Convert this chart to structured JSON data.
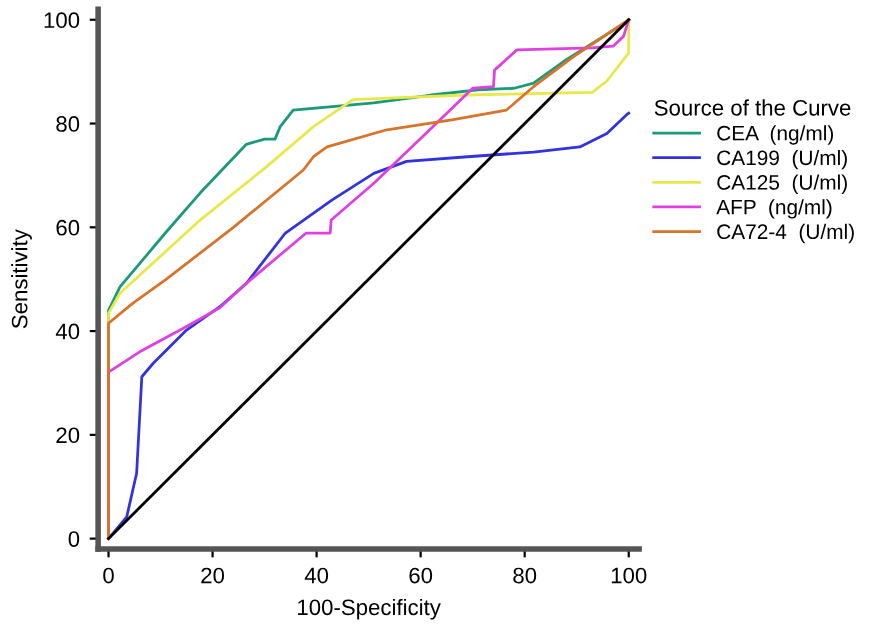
{
  "chart_data": {
    "type": "line",
    "xlabel": "100-Specificity",
    "ylabel": "Sensitivity",
    "legend_title": "Source of the Curve",
    "legend": "right",
    "grid": false,
    "marker": "none",
    "line_style": "solid",
    "xlim": [
      -2,
      102
    ],
    "ylim": [
      -2,
      102
    ],
    "xticks": [
      0,
      20,
      40,
      60,
      80,
      100
    ],
    "yticks": [
      0,
      20,
      40,
      60,
      80,
      100
    ],
    "series": [
      {
        "name": "CEA  (ng/ml)",
        "color": "#1a9a7a",
        "x": [
          0,
          0,
          2.2,
          11,
          17.6,
          26.5,
          30,
          32,
          33,
          35.5,
          51,
          62,
          71,
          78,
          81.7,
          88,
          99.6,
          100
        ],
        "values": [
          0,
          44,
          48.5,
          59,
          66.6,
          76,
          77,
          77,
          79.4,
          82.6,
          84,
          85.5,
          86.5,
          86.8,
          87.8,
          92.3,
          99.6,
          100
        ]
      },
      {
        "name": "CA199  (U/ml)",
        "color": "#3333dd",
        "x": [
          0,
          3.5,
          5.4,
          6.4,
          8.6,
          15,
          21.4,
          26.5,
          34,
          43,
          51,
          57.3,
          69,
          81.7,
          90.6,
          95.8,
          99.6,
          100
        ],
        "values": [
          0,
          4.2,
          12.6,
          31.2,
          33.8,
          40.2,
          44.7,
          49.2,
          58.9,
          65.3,
          70.4,
          72.7,
          73.6,
          74.5,
          75.5,
          78.1,
          81.7,
          82
        ]
      },
      {
        "name": "CA125  (U/ml)",
        "color": "#e8e84a",
        "x": [
          0,
          0,
          2.2,
          17.6,
          30.4,
          39.4,
          47,
          56,
          69,
          93,
          95.8,
          100,
          100
        ],
        "values": [
          0,
          43.4,
          47.3,
          61.4,
          71.7,
          79.4,
          84.6,
          85,
          85.5,
          86,
          88.2,
          93.6,
          100
        ]
      },
      {
        "name": "AFP  (ng/ml)",
        "color": "#e040e0",
        "x": [
          0,
          0,
          6,
          15,
          21.4,
          26.5,
          38,
          42.6,
          42.8,
          51,
          61,
          70,
          74,
          74.2,
          78.5,
          93,
          97,
          99,
          100
        ],
        "values": [
          0,
          32.1,
          36,
          40.9,
          44.5,
          49.2,
          58.9,
          58.9,
          61.4,
          68.5,
          78.1,
          86.8,
          87.1,
          90.3,
          94.2,
          94.6,
          94.9,
          96.8,
          100
        ]
      },
      {
        "name": "CA72-4  (U/ml)",
        "color": "#d9732a",
        "x": [
          0,
          0,
          4.7,
          11,
          24,
          37.4,
          39.4,
          42,
          53.5,
          66,
          76.5,
          81.7,
          89.4,
          100
        ],
        "values": [
          0,
          41.5,
          45.4,
          49.9,
          60,
          71,
          73.6,
          75.5,
          78.8,
          80.7,
          82.6,
          87.1,
          92.9,
          100
        ]
      },
      {
        "color": "#000000",
        "x": [
          0,
          100
        ],
        "values": [
          0,
          100
        ]
      }
    ]
  }
}
